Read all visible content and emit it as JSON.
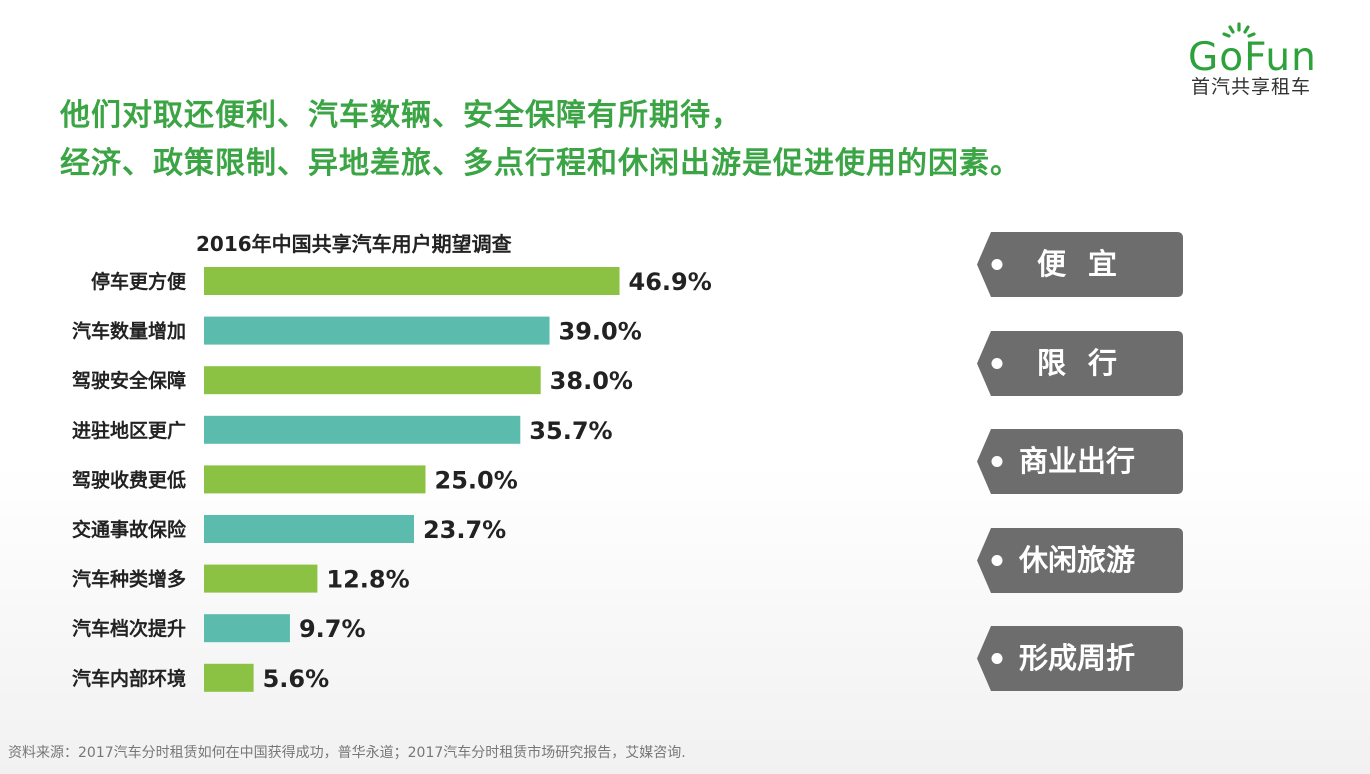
{
  "logo": {
    "word": "GoFun",
    "subtitle": "首汽共享租车",
    "color": "#2ea23a"
  },
  "heading": {
    "line1": "他们对取还便利、汽车数辆、安全保障有所期待，",
    "line2": "经济、政策限制、异地差旅、多点行程和休闲出游是促进使用的因素。",
    "color": "#3ba444"
  },
  "chart_data": {
    "type": "bar",
    "orientation": "horizontal",
    "title": "2016年中国共享汽车用户期望调查",
    "categories": [
      "停车更方便",
      "汽车数量增加",
      "驾驶安全保障",
      "进驻地区更广",
      "驾驶收费更低",
      "交通事故保险",
      "汽车种类增多",
      "汽车档次提升",
      "汽车内部环境"
    ],
    "values": [
      46.9,
      39.0,
      38.0,
      35.7,
      25.0,
      23.7,
      12.8,
      9.7,
      5.6
    ],
    "value_labels": [
      "46.9%",
      "39.0%",
      "38.0%",
      "35.7%",
      "25.0%",
      "23.7%",
      "12.8%",
      "9.7%",
      "5.6%"
    ],
    "unit": "%",
    "colors": [
      "#8bc243",
      "#5bbcae"
    ],
    "xlim": [
      0,
      50
    ],
    "grid": false,
    "legend": "none"
  },
  "tags": [
    {
      "label": "便宜",
      "spaced": true
    },
    {
      "label": "限行",
      "spaced": true
    },
    {
      "label": "商业出行",
      "spaced": false
    },
    {
      "label": "休闲旅游",
      "spaced": false
    },
    {
      "label": "形成周折",
      "spaced": false
    }
  ],
  "tag_color": "#6d6d6d",
  "source": "资料来源：2017汽车分时租赁如何在中国获得成功，普华永道；2017汽车分时租赁市场研究报告，艾媒咨询."
}
